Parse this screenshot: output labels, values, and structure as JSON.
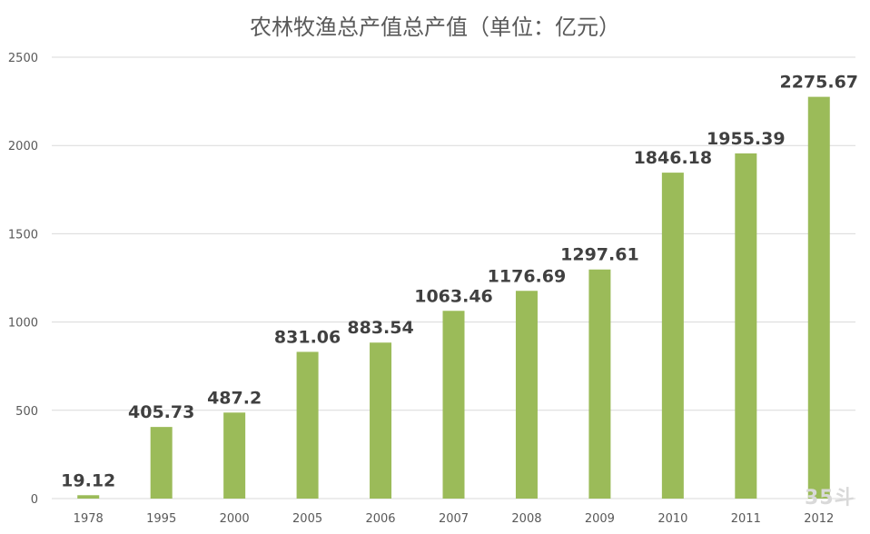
{
  "chart_data": {
    "type": "bar",
    "title": "农林牧渔总产值总产值（单位：亿元）",
    "categories": [
      "1978",
      "1995",
      "2000",
      "2005",
      "2006",
      "2007",
      "2008",
      "2009",
      "2010",
      "2011",
      "2012"
    ],
    "values": [
      19.12,
      405.73,
      487.2,
      831.06,
      883.54,
      1063.46,
      1176.69,
      1297.61,
      1846.18,
      1955.39,
      2275.67
    ],
    "data_labels": [
      "19.12",
      "405.73",
      "487.2",
      "831.06",
      "883.54",
      "1063.46",
      "1176.69",
      "1297.61",
      "1846.18",
      "1955.39",
      "2275.67"
    ],
    "ylim": [
      0,
      2500
    ],
    "yticks": [
      "0",
      "500",
      "1000",
      "1500",
      "2000",
      "2500"
    ],
    "grid": true,
    "bar_color": "#9bbb59",
    "grid_color": "#d9d9d9"
  },
  "watermark": "35斗"
}
